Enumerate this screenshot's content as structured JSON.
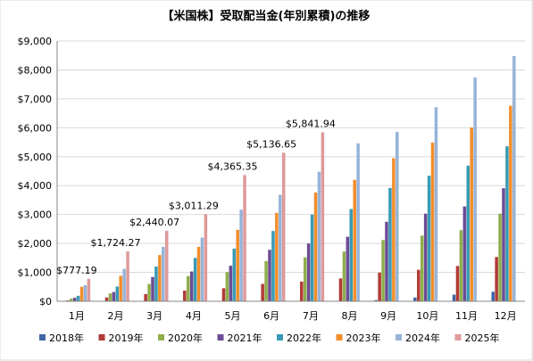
{
  "chart_data": {
    "type": "bar",
    "title": "【米国株】受取配当金(年別累積)の推移",
    "xlabel": "",
    "ylabel": "",
    "ylim": [
      0,
      9000
    ],
    "yticks": [
      "$0",
      "$1,000",
      "$2,000",
      "$3,000",
      "$4,000",
      "$5,000",
      "$6,000",
      "$7,000",
      "$8,000",
      "$9,000"
    ],
    "grid": true,
    "legend_position": "bottom",
    "categories": [
      "1月",
      "2月",
      "3月",
      "4月",
      "5月",
      "6月",
      "7月",
      "8月",
      "9月",
      "10月",
      "11月",
      "12月"
    ],
    "series": [
      {
        "name": "2018年",
        "color": "#3f67a7",
        "values": [
          0,
          0,
          0,
          0,
          0,
          0,
          0,
          0,
          40,
          130,
          230,
          330
        ]
      },
      {
        "name": "2019年",
        "color": "#b23a37",
        "values": [
          30,
          130,
          250,
          370,
          450,
          600,
          680,
          790,
          990,
          1090,
          1220,
          1530
        ]
      },
      {
        "name": "2020年",
        "color": "#8fae4c",
        "values": [
          90,
          270,
          600,
          870,
          1010,
          1390,
          1520,
          1720,
          2120,
          2270,
          2460,
          3030
        ]
      },
      {
        "name": "2021年",
        "color": "#6b4c94",
        "values": [
          120,
          320,
          840,
          1030,
          1230,
          1780,
          2000,
          2230,
          2750,
          3030,
          3280,
          3910
        ]
      },
      {
        "name": "2022年",
        "color": "#3a9ab5",
        "values": [
          190,
          510,
          1200,
          1500,
          1820,
          2430,
          3000,
          3190,
          3920,
          4340,
          4690,
          5360
        ]
      },
      {
        "name": "2023年",
        "color": "#f28e2b",
        "values": [
          500,
          880,
          1600,
          1880,
          2470,
          3060,
          3760,
          4200,
          4950,
          5490,
          6010,
          6760
        ]
      },
      {
        "name": "2024年",
        "color": "#97b3d8",
        "values": [
          560,
          1120,
          1880,
          2200,
          3170,
          3680,
          4480,
          5460,
          5860,
          6710,
          7740,
          8480
        ]
      },
      {
        "name": "2025年",
        "color": "#df9a9a",
        "values": [
          777.19,
          1724.27,
          2440.07,
          3011.29,
          4365.35,
          5136.65,
          5841.94,
          null,
          null,
          null,
          null,
          null
        ]
      }
    ],
    "data_labels": [
      "$777.19",
      "$1,724.27",
      "$2,440.07",
      "$3,011.29",
      "$4,365.35",
      "$5,136.65",
      "$5,841.94"
    ]
  }
}
